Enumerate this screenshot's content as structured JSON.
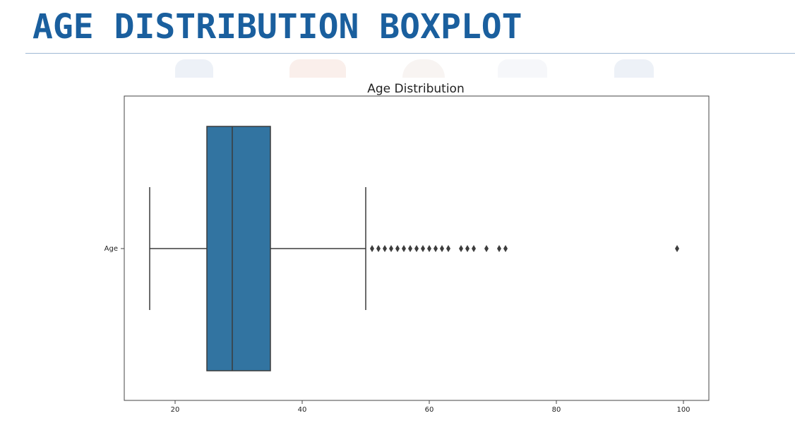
{
  "slide": {
    "title": "AGE DISTRIBUTION BOXPLOT"
  },
  "colors": {
    "title": "#1a5f9e",
    "box_fill": "#3274a1",
    "line": "#3b3b3b"
  },
  "chart_data": {
    "type": "boxplot",
    "title": "Age Distribution",
    "orientation": "horizontal",
    "category_label": "Age",
    "xlabel": "",
    "ylabel": "",
    "xlim": [
      12,
      104
    ],
    "xticks": [
      20,
      40,
      60,
      80,
      100
    ],
    "grid": false,
    "box": {
      "whisker_low": 16,
      "q1": 25,
      "median": 29,
      "q3": 35,
      "whisker_high": 50
    },
    "outliers": [
      51,
      52,
      53,
      54,
      55,
      56,
      57,
      58,
      59,
      60,
      61,
      62,
      63,
      65,
      66,
      67,
      69,
      71,
      72,
      99
    ]
  }
}
